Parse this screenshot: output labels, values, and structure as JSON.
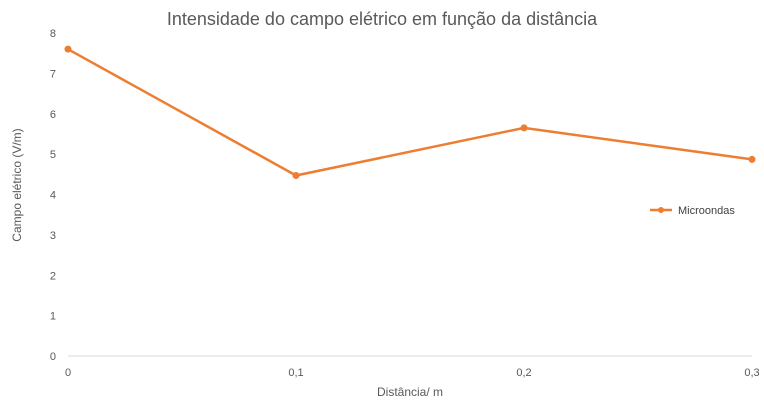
{
  "chart_data": {
    "type": "line",
    "title": "Intensidade do campo elétrico em função da distância",
    "xlabel": "Distância/ m",
    "ylabel": "Campo elétrico (V/m)",
    "x": [
      0,
      0.1,
      0.2,
      0.3
    ],
    "x_tick_labels": [
      "0",
      "0,1",
      "0,2",
      "0,3"
    ],
    "xlim": [
      0,
      0.3
    ],
    "ylim": [
      0,
      8
    ],
    "y_ticks": [
      0,
      1,
      2,
      3,
      4,
      5,
      6,
      7,
      8
    ],
    "y_tick_labels": [
      "0",
      "1",
      "2",
      "3",
      "4",
      "5",
      "6",
      "7",
      "8"
    ],
    "grid": false,
    "legend_position": "right",
    "series": [
      {
        "name": "Microondas",
        "color": "#ED7D31",
        "values": [
          7.6,
          4.47,
          5.65,
          4.87
        ]
      }
    ]
  }
}
